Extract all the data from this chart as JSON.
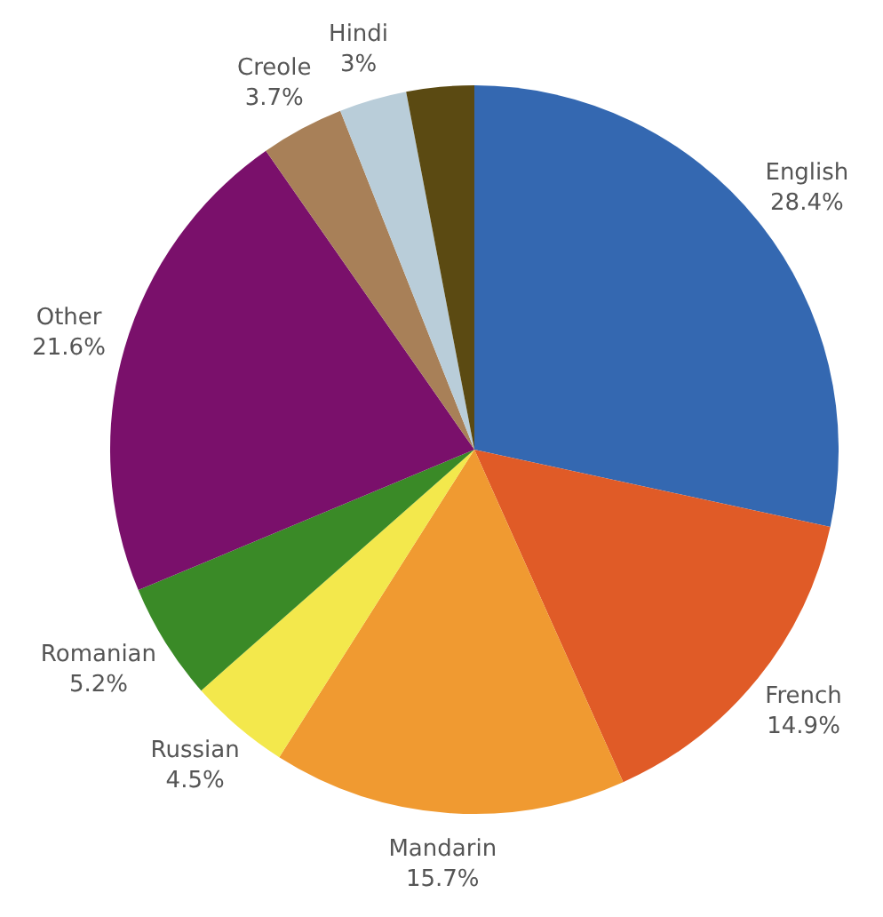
{
  "chart_data": {
    "type": "pie",
    "categories": [
      "English",
      "French",
      "Mandarin",
      "Russian",
      "Romanian",
      "Other",
      "Creole",
      "Hindi",
      null
    ],
    "values": [
      28.4,
      14.9,
      15.7,
      4.5,
      5.2,
      21.6,
      3.7,
      3,
      3.0
    ],
    "colors": [
      "#3468b1",
      "#e05b27",
      "#f09a31",
      "#f3e84c",
      "#3a8a27",
      "#7a106b",
      "#a88058",
      "#b9cdd9",
      "#5b4a12"
    ],
    "value_labels": [
      "28.4%",
      "14.9%",
      "15.7%",
      "4.5%",
      "5.2%",
      "21.6%",
      "3.7%",
      "3%",
      null
    ],
    "legend": false
  }
}
